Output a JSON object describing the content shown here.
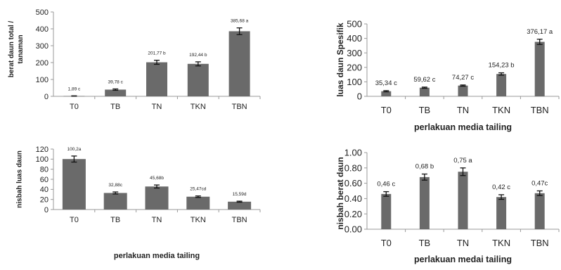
{
  "colors": {
    "bar": "#6a6a6a",
    "axis": "#999999",
    "grid": "#d9d9d9",
    "text": "#222222",
    "error": "#111111"
  },
  "chart_data": [
    {
      "type": "bar",
      "title": "",
      "xlabel": "",
      "ylabel": "berat daun total / tanaman",
      "ylabel_lines": [
        "berat daun total /",
        "tanaman"
      ],
      "categories": [
        "T0",
        "TB",
        "TN",
        "TKN",
        "TBN"
      ],
      "values": [
        1.89,
        39.78,
        201.77,
        192.44,
        385.68
      ],
      "errors": [
        1,
        4,
        12,
        12,
        20
      ],
      "data_labels": [
        "1,89 c",
        "39,78 c",
        "201,77 b",
        "192,44 b",
        "385,68 a"
      ],
      "ylim": [
        0,
        500
      ],
      "yticks": [
        "0",
        "100",
        "200",
        "300",
        "400",
        "500"
      ],
      "grid": false
    },
    {
      "type": "bar",
      "title": "",
      "xlabel": "perlakuan media tailing",
      "ylabel": "luas daun Spesifik",
      "ylabel_lines": [
        "luas daun Spesifik"
      ],
      "categories": [
        "T0",
        "TB",
        "TN",
        "TKN",
        "TBN"
      ],
      "values": [
        35.34,
        59.62,
        74.27,
        154.23,
        376.17
      ],
      "errors": [
        4,
        4,
        4,
        8,
        18
      ],
      "data_labels": [
        "35,34 c",
        "59,62 c",
        "74,27 c",
        "154,23 b",
        "376,17 a"
      ],
      "ylim": [
        0,
        500
      ],
      "yticks": [
        "0",
        "100",
        "200",
        "300",
        "400",
        "500"
      ],
      "grid": false
    },
    {
      "type": "bar",
      "title": "",
      "xlabel": "perlakuan media tailing",
      "ylabel": "nisbah luas daun",
      "ylabel_lines": [
        "nisbah luas daun"
      ],
      "categories": [
        "T0",
        "TB",
        "TN",
        "TKN",
        "TBN"
      ],
      "values": [
        100.2,
        32.88,
        45.68,
        25.47,
        15.59
      ],
      "errors": [
        6,
        2,
        3,
        1.5,
        1
      ],
      "data_labels": [
        "100,2a",
        "32,88c",
        "45,68b",
        "25,47cd",
        "15,59d"
      ],
      "ylim": [
        0,
        120
      ],
      "yticks": [
        "0",
        "20",
        "40",
        "60",
        "80",
        "100",
        "120"
      ],
      "grid": false
    },
    {
      "type": "bar",
      "title": "",
      "xlabel": "perlakuan medai tailing",
      "ylabel": "nisbah berat daun",
      "ylabel_lines": [
        "nisbah berat daun"
      ],
      "categories": [
        "T0",
        "TB",
        "TN",
        "TKN",
        "TBN"
      ],
      "values": [
        0.46,
        0.68,
        0.75,
        0.42,
        0.47
      ],
      "errors": [
        0.03,
        0.04,
        0.05,
        0.03,
        0.03
      ],
      "data_labels": [
        "0,46 c",
        "0,68 b",
        "0,75 a",
        "0,42 c",
        "0,47c"
      ],
      "ylim": [
        0,
        1.0
      ],
      "yticks": [
        "0.00",
        "0.20",
        "0.40",
        "0.60",
        "0.80",
        "1.00"
      ],
      "grid": false
    }
  ]
}
